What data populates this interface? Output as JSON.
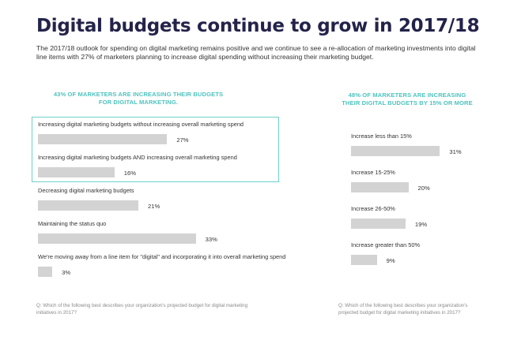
{
  "header": {
    "title": "Digital budgets continue to grow in 2017/18",
    "intro": "The 2017/18 outlook for spending on digital marketing remains positive and we continue to see a re-allocation of marketing investments into digital line items with 27% of marketers planning to increase digital spending without increasing their marketing budget."
  },
  "chart_data": [
    {
      "type": "bar",
      "orientation": "horizontal",
      "title": "43% OF MARKETERS ARE INCREASING THEIR BUDGETS FOR DIGITAL MARKETING.",
      "categories": [
        "Increasing digital marketing budgets without increasing overall marketing spend",
        "Increasing digital marketing budgets AND increasing overall marketing spend",
        "Decreasing digital marketing budgets",
        "Maintaining the status quo",
        "We're moving away from a line item for \"digital\" and incorporating it into overall marketing spend"
      ],
      "values": [
        27,
        16,
        21,
        33,
        3
      ],
      "value_labels": [
        "27%",
        "16%",
        "21%",
        "33%",
        "3%"
      ],
      "highlighted_categories": [
        0,
        1
      ],
      "bar_color": "#d3d3d3",
      "highlight_color": "#6fd0cc",
      "xlim": [
        0,
        40
      ],
      "question": "Q: Which of the following best describes your organization's projected budget for digital marketing initiatives in 2017?"
    },
    {
      "type": "bar",
      "orientation": "horizontal",
      "title": "48% OF MARKETERS ARE INCREASING THEIR DIGITAL BUDGETS BY 15% OR MORE",
      "categories": [
        "Increase less than 15%",
        "Increase 15-25%",
        "Increase 26-50%",
        "Increase greater than 50%"
      ],
      "values": [
        31,
        20,
        19,
        9
      ],
      "value_labels": [
        "31%",
        "20%",
        "19%",
        "9%"
      ],
      "bar_color": "#d3d3d3",
      "xlim": [
        0,
        40
      ],
      "question": "Q: Which of the following best describes your organization's projected budget for digital marketing initiatives in 2017?"
    }
  ],
  "colors": {
    "title": "#23234a",
    "accent": "#4ec3bf",
    "bar": "#d3d3d3"
  }
}
